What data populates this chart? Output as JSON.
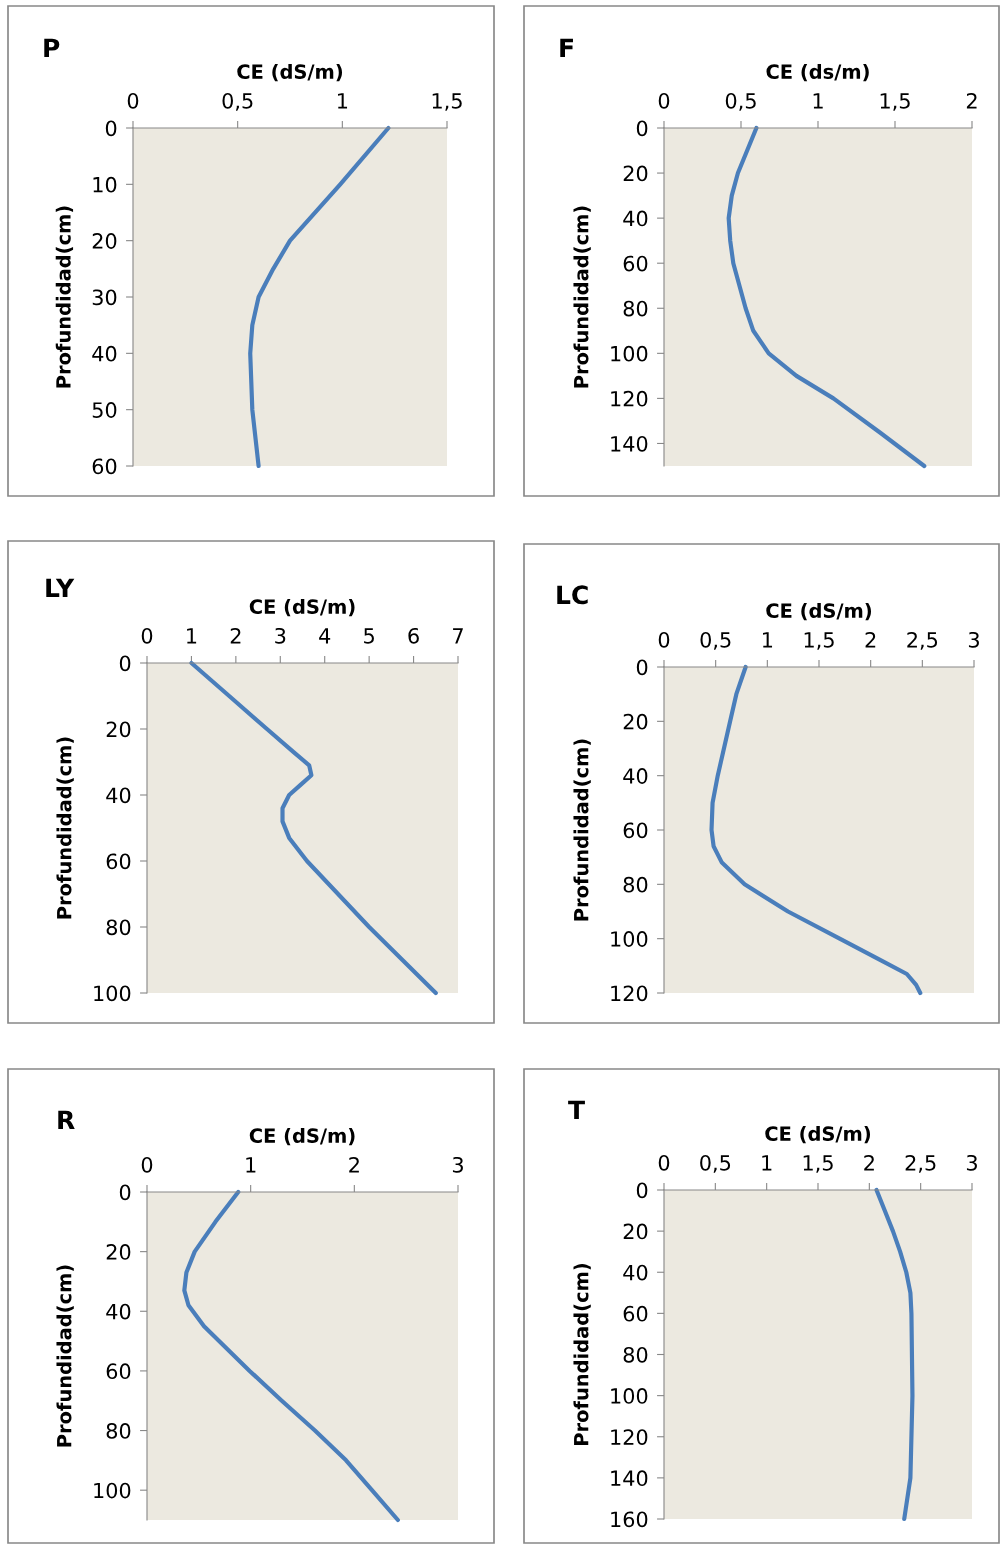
{
  "chart_data": [
    {
      "type": "line",
      "title": "P",
      "xlabel": "CE (dS/m)",
      "ylabel": "Profundidad(cm)",
      "orientation": "horizontal",
      "grid": false,
      "marker": "none",
      "line_style": "solid",
      "x": [
        0,
        10,
        20,
        25,
        30,
        35,
        40,
        50,
        60
      ],
      "series": [
        {
          "color": "#4a7ebb",
          "values": [
            1.22,
            0.99,
            0.75,
            0.67,
            0.6,
            0.57,
            0.56,
            0.57,
            0.6
          ]
        }
      ],
      "xlim": [
        0,
        1.5
      ],
      "xticks": [
        0,
        {
          "value": 0.5,
          "label": "0,5"
        },
        1,
        {
          "value": 1.5,
          "label": "1,5"
        }
      ],
      "ylim": [
        60,
        0
      ],
      "yticks": [
        0,
        10,
        20,
        30,
        40,
        50,
        60
      ]
    },
    {
      "type": "line",
      "title": "F",
      "xlabel": "CE (ds/m)",
      "ylabel": "Profundidad(cm)",
      "orientation": "horizontal",
      "grid": false,
      "marker": "none",
      "line_style": "solid",
      "x": [
        0,
        10,
        20,
        30,
        40,
        50,
        60,
        70,
        80,
        90,
        100,
        110,
        120,
        135,
        150
      ],
      "series": [
        {
          "color": "#4a7ebb",
          "values": [
            0.6,
            0.54,
            0.48,
            0.44,
            0.42,
            0.43,
            0.45,
            0.49,
            0.53,
            0.58,
            0.68,
            0.86,
            1.1,
            1.4,
            1.69
          ]
        }
      ],
      "xlim": [
        0,
        2
      ],
      "xticks": [
        0,
        {
          "value": 0.5,
          "label": "0,5"
        },
        1,
        {
          "value": 1.5,
          "label": "1,5"
        },
        2
      ],
      "ylim": [
        150,
        0
      ],
      "yticks": [
        0,
        20,
        40,
        60,
        80,
        100,
        120,
        140
      ]
    },
    {
      "type": "line",
      "title": "LY",
      "xlabel": "CE (dS/m)",
      "ylabel": "Profundidad(cm)",
      "orientation": "horizontal",
      "grid": false,
      "marker": "none",
      "line_style": "solid",
      "x": [
        0,
        10,
        20,
        27,
        31,
        34,
        37,
        40,
        44,
        48,
        53,
        60,
        70,
        80,
        90,
        100
      ],
      "series": [
        {
          "color": "#4a7ebb",
          "values": [
            1.0,
            1.85,
            2.7,
            3.3,
            3.65,
            3.7,
            3.45,
            3.2,
            3.05,
            3.05,
            3.2,
            3.6,
            4.3,
            5.0,
            5.75,
            6.5
          ]
        }
      ],
      "xlim": [
        0,
        7
      ],
      "xticks": [
        0,
        1,
        2,
        3,
        4,
        5,
        6,
        7
      ],
      "ylim": [
        100,
        0
      ],
      "yticks": [
        0,
        20,
        40,
        60,
        80,
        100
      ]
    },
    {
      "type": "line",
      "title": "LC",
      "xlabel": "CE (dS/m)",
      "ylabel": "Profundidad(cm)",
      "orientation": "horizontal",
      "grid": false,
      "marker": "none",
      "line_style": "solid",
      "x": [
        0,
        10,
        20,
        30,
        40,
        50,
        60,
        66,
        72,
        80,
        90,
        100,
        108,
        113,
        117,
        120
      ],
      "series": [
        {
          "color": "#4a7ebb",
          "values": [
            0.79,
            0.7,
            0.64,
            0.58,
            0.52,
            0.47,
            0.46,
            0.48,
            0.56,
            0.78,
            1.2,
            1.7,
            2.1,
            2.35,
            2.44,
            2.48
          ]
        }
      ],
      "xlim": [
        0,
        3
      ],
      "xticks": [
        0,
        {
          "value": 0.5,
          "label": "0,5"
        },
        1,
        {
          "value": 1.5,
          "label": "1,5"
        },
        2,
        {
          "value": 2.5,
          "label": "2,5"
        },
        3
      ],
      "ylim": [
        120,
        0
      ],
      "yticks": [
        0,
        20,
        40,
        60,
        80,
        100,
        120
      ]
    },
    {
      "type": "line",
      "title": "R",
      "xlabel": "CE (dS/m)",
      "ylabel": "Profundidad(cm)",
      "orientation": "horizontal",
      "grid": false,
      "marker": "none",
      "line_style": "solid",
      "x": [
        0,
        10,
        20,
        27,
        33,
        38,
        45,
        60,
        70,
        80,
        90,
        100,
        110
      ],
      "series": [
        {
          "color": "#4a7ebb",
          "values": [
            0.88,
            0.66,
            0.46,
            0.38,
            0.36,
            0.4,
            0.55,
            0.99,
            1.3,
            1.62,
            1.92,
            2.17,
            2.42
          ]
        }
      ],
      "xlim": [
        0,
        3
      ],
      "xticks": [
        0,
        1,
        2,
        3
      ],
      "ylim": [
        110,
        0
      ],
      "yticks": [
        0,
        20,
        40,
        60,
        80,
        100
      ]
    },
    {
      "type": "line",
      "title": "T",
      "xlabel": "CE (dS/m)",
      "ylabel": "Profundidad(cm)",
      "orientation": "horizontal",
      "grid": false,
      "marker": "none",
      "line_style": "solid",
      "x": [
        0,
        10,
        20,
        30,
        40,
        50,
        60,
        100,
        140,
        160
      ],
      "series": [
        {
          "color": "#4a7ebb",
          "values": [
            2.07,
            2.15,
            2.23,
            2.3,
            2.36,
            2.4,
            2.41,
            2.42,
            2.4,
            2.34
          ]
        }
      ],
      "xlim": [
        0,
        3
      ],
      "xticks": [
        0,
        {
          "value": 0.5,
          "label": "0,5"
        },
        1,
        {
          "value": 1.5,
          "label": "1,5"
        },
        2,
        {
          "value": 2.5,
          "label": "2,5"
        },
        3
      ],
      "ylim": [
        160,
        0
      ],
      "yticks": [
        0,
        20,
        40,
        60,
        80,
        100,
        120,
        140,
        160
      ]
    }
  ]
}
